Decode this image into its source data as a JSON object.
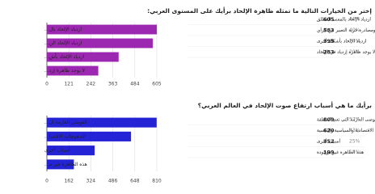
{
  "chart_data": [
    {
      "type": "bar",
      "orientation": "horizontal",
      "title": "إختر من الخيارات التالية ما تمثله ظاهرة الإلحاد برأيك على المستوى العربي:",
      "categories": [
        "ازدياد الإلحاد بال...",
        "ازدياد الإلحاد الن...",
        "ازدياد الإلحاد بأش...",
        "لا يوجد ظاهرة إزد..."
      ],
      "values": [
        605,
        583,
        395,
        283
      ],
      "table_labels": [
        "ازدياد الإلحاد بالمعنى المطلق",
        "ازدياد الإلحاد الناتج عن الاختلاف الفكري ومصادرة حرية التعبير عن الرأي",
        "ازدياد الإلحاد بأشكال أخرى",
        "لا يوجد ظاهرة إزدياد في الإلحاد"
      ],
      "percent_labels": [
        "41%",
        "40%",
        "28%",
        "20%"
      ],
      "color": "#9c27b0",
      "xlim": [
        0,
        605
      ],
      "xticks": [
        0,
        121,
        242,
        363,
        484,
        605
      ],
      "grid": true
    },
    {
      "type": "bar",
      "orientation": "horizontal",
      "title": "برأيك ما هي أسباب ارتفاع صوت الإلحاد في العالم العربي؟",
      "categories": [
        "الفوضى العارمة ال...",
        "الضغوطات الاقتصا...",
        "أسباب أخرى",
        "هذه الظاهرة غير م..."
      ],
      "values": [
        809,
        620,
        352,
        199
      ],
      "table_labels": [
        "الفوضى العارمة التي تعم المنطقة",
        "الضغوطات الاقتصادية والسياسية والنفسية",
        "أسباب أخرى",
        "هذه الظاهرة غير موجودة"
      ],
      "percent_labels": [
        "57%",
        "43%",
        "25%",
        "14%"
      ],
      "color": "#2424d6",
      "xlim": [
        0,
        810
      ],
      "xticks": [
        0,
        162,
        324,
        486,
        648,
        810
      ],
      "grid": true
    }
  ]
}
